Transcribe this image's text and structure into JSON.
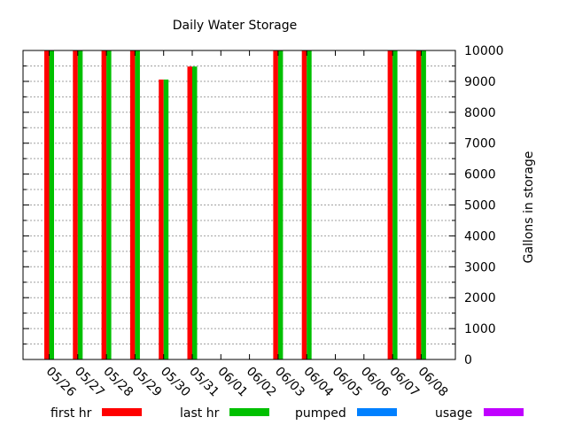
{
  "chart_data": {
    "type": "bar",
    "title": "Daily Water Storage",
    "xlabel": "",
    "ylabel": "Gallons in storage",
    "categories": [
      "05/26",
      "05/27",
      "05/28",
      "05/29",
      "05/30",
      "05/31",
      "06/01",
      "06/02",
      "06/03",
      "06/04",
      "06/05",
      "06/06",
      "06/07",
      "06/08"
    ],
    "series": [
      {
        "name": "first hr",
        "color": "#ff0000",
        "values": [
          10000,
          10000,
          10000,
          10000,
          9060,
          9480,
          null,
          null,
          10000,
          10000,
          null,
          null,
          10000,
          10000
        ]
      },
      {
        "name": "last hr",
        "color": "#00c000",
        "values": [
          10000,
          10000,
          10000,
          10000,
          9060,
          9480,
          null,
          null,
          10000,
          10000,
          null,
          null,
          10000,
          10000
        ]
      },
      {
        "name": "pumped",
        "color": "#0080ff",
        "values": [
          null,
          null,
          null,
          null,
          null,
          null,
          null,
          null,
          null,
          null,
          null,
          null,
          null,
          null
        ]
      },
      {
        "name": "usage",
        "color": "#c000ff",
        "values": [
          null,
          null,
          null,
          null,
          null,
          null,
          null,
          null,
          null,
          null,
          null,
          null,
          null,
          null
        ]
      }
    ],
    "yaxis_side": "right",
    "ylim": [
      0,
      10000
    ],
    "yticks": [
      "0",
      "1000",
      "2000",
      "3000",
      "4000",
      "5000",
      "6000",
      "7000",
      "8000",
      "9000",
      "10000"
    ],
    "grid": true,
    "legend_position": "bottom"
  }
}
